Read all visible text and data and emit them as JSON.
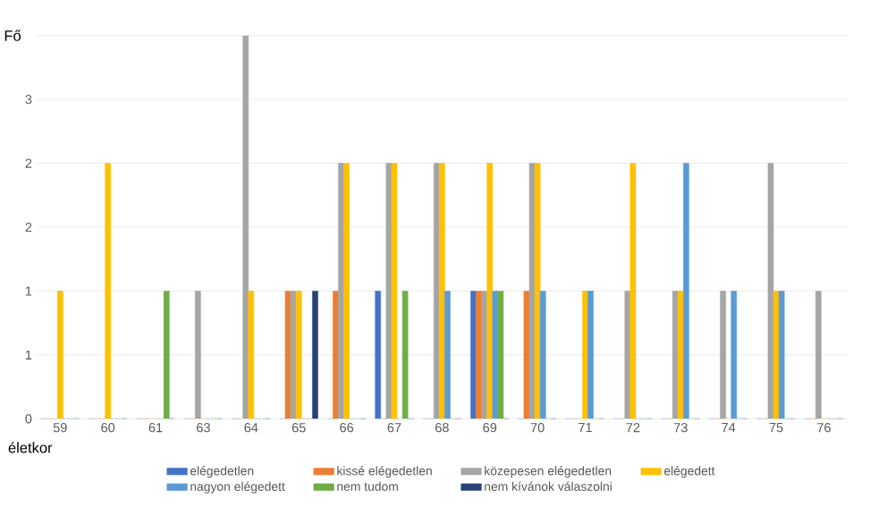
{
  "chart_data": {
    "type": "bar",
    "xlabel": "életkor",
    "ylabel": "Fő",
    "categories": [
      "59",
      "60",
      "61",
      "63",
      "64",
      "65",
      "66",
      "67",
      "68",
      "69",
      "70",
      "71",
      "72",
      "73",
      "74",
      "75",
      "76"
    ],
    "ylim": [
      0,
      3
    ],
    "yticks": [
      0,
      {
        "value": 0.5,
        "label": "1"
      },
      1,
      {
        "value": 1.5,
        "label": "2"
      },
      2,
      {
        "value": 2.5,
        "label": "3"
      },
      {
        "value": 3,
        "label": null
      }
    ],
    "grid": "y",
    "legend": "bottom",
    "series": [
      {
        "name": "elégedetlen",
        "color": "#4472c4",
        "values": [
          0,
          0,
          0,
          0,
          0,
          0,
          0,
          1,
          0,
          1,
          0,
          0,
          0,
          0,
          0,
          0,
          0
        ]
      },
      {
        "name": "kissé elégedetlen",
        "color": "#ed7d31",
        "values": [
          0,
          0,
          0,
          0,
          0,
          1,
          1,
          0,
          0,
          1,
          1,
          0,
          0,
          0,
          0,
          0,
          0
        ]
      },
      {
        "name": "közepesen elégedetlen",
        "color": "#a5a5a5",
        "values": [
          0,
          0,
          0,
          1,
          3,
          1,
          2,
          2,
          2,
          1,
          2,
          0,
          1,
          1,
          1,
          2,
          1
        ]
      },
      {
        "name": "elégedett",
        "color": "#ffc000",
        "values": [
          1,
          2,
          0,
          0,
          1,
          1,
          2,
          2,
          2,
          2,
          2,
          1,
          2,
          1,
          0,
          1,
          0
        ]
      },
      {
        "name": "nagyon elégedett",
        "color": "#5b9bd5",
        "values": [
          0,
          0,
          0,
          0,
          0,
          0,
          0,
          0,
          1,
          1,
          1,
          1,
          0,
          2,
          1,
          1,
          0
        ]
      },
      {
        "name": "nem tudom",
        "color": "#70ad47",
        "values": [
          0,
          0,
          1,
          0,
          0,
          0,
          0,
          1,
          0,
          1,
          0,
          0,
          0,
          0,
          0,
          0,
          0
        ]
      },
      {
        "name": "nem kívánok válaszolni",
        "color": "#264478",
        "values": [
          0,
          0,
          0,
          0,
          0,
          1,
          0,
          0,
          0,
          0,
          0,
          0,
          0,
          0,
          0,
          0,
          0
        ]
      }
    ]
  }
}
